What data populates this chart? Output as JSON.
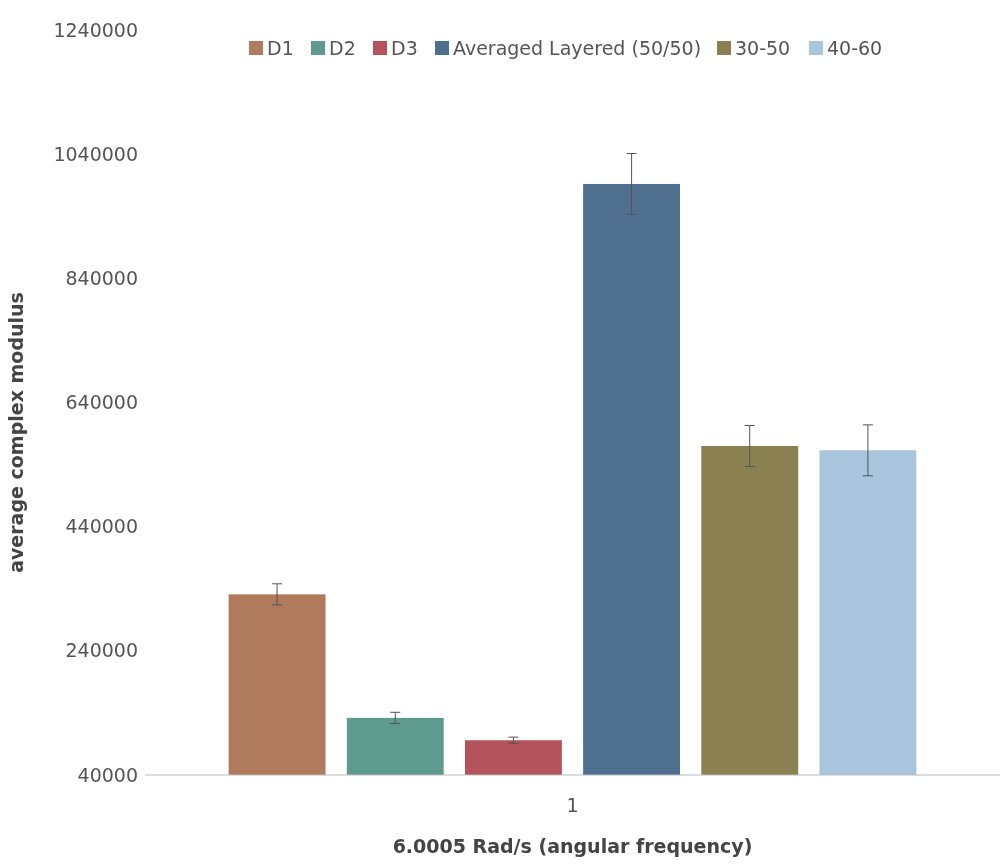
{
  "chart_data": {
    "type": "bar",
    "xlabel": "6.0005 Rad/s (angular frequency)",
    "ylabel": "average complex modulus",
    "categories": [
      "1"
    ],
    "series": [
      {
        "name": "D1",
        "color": "#b07a5c",
        "values": [
          331000
        ],
        "errors": [
          17000
        ]
      },
      {
        "name": "D2",
        "color": "#5f9a8f",
        "values": [
          132000
        ],
        "errors": [
          9000
        ]
      },
      {
        "name": "D3",
        "color": "#b5535c",
        "values": [
          96000
        ],
        "errors": [
          5000
        ]
      },
      {
        "name": "Averaged Layered (50/50)",
        "color": "#4f6f8f",
        "values": [
          992000
        ],
        "errors": [
          49000
        ]
      },
      {
        "name": "30-50",
        "color": "#8a8052",
        "values": [
          570000
        ],
        "errors": [
          33000
        ]
      },
      {
        "name": "40-60",
        "color": "#a9c5dd",
        "values": [
          563000
        ],
        "errors": [
          41000
        ]
      }
    ],
    "ylim": [
      40000,
      1240000
    ],
    "yticks": [
      40000,
      240000,
      440000,
      640000,
      840000,
      1040000,
      1240000
    ],
    "grid": false,
    "legend": "top"
  }
}
